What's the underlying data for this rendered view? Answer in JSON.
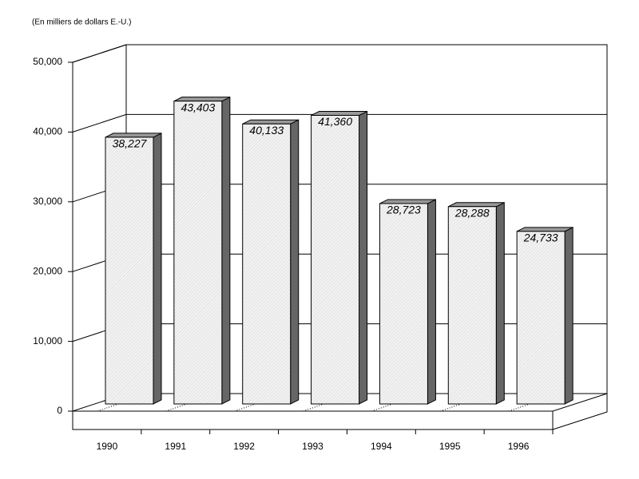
{
  "chart_data": {
    "type": "bar3d",
    "title": "(En milliers de dollars E.-U.)",
    "categories": [
      "1990",
      "1991",
      "1992",
      "1993",
      "1994",
      "1995",
      "1996"
    ],
    "values": [
      38227,
      43403,
      40133,
      41360,
      28723,
      28288,
      24733
    ],
    "value_labels": [
      "38,227",
      "43,403",
      "40,133",
      "41,360",
      "28,723",
      "28,288",
      "24,733"
    ],
    "color": "#eeeeee",
    "ylim": [
      0,
      50000
    ],
    "yticks": [
      0,
      {
        "value": 10000,
        "label": "10,000"
      },
      {
        "value": 20000,
        "label": "20,000"
      },
      {
        "value": 30000,
        "label": "30,000"
      },
      {
        "value": 40000,
        "label": "40,000"
      },
      {
        "value": 50000,
        "label": "50,000"
      }
    ],
    "grid": true
  }
}
